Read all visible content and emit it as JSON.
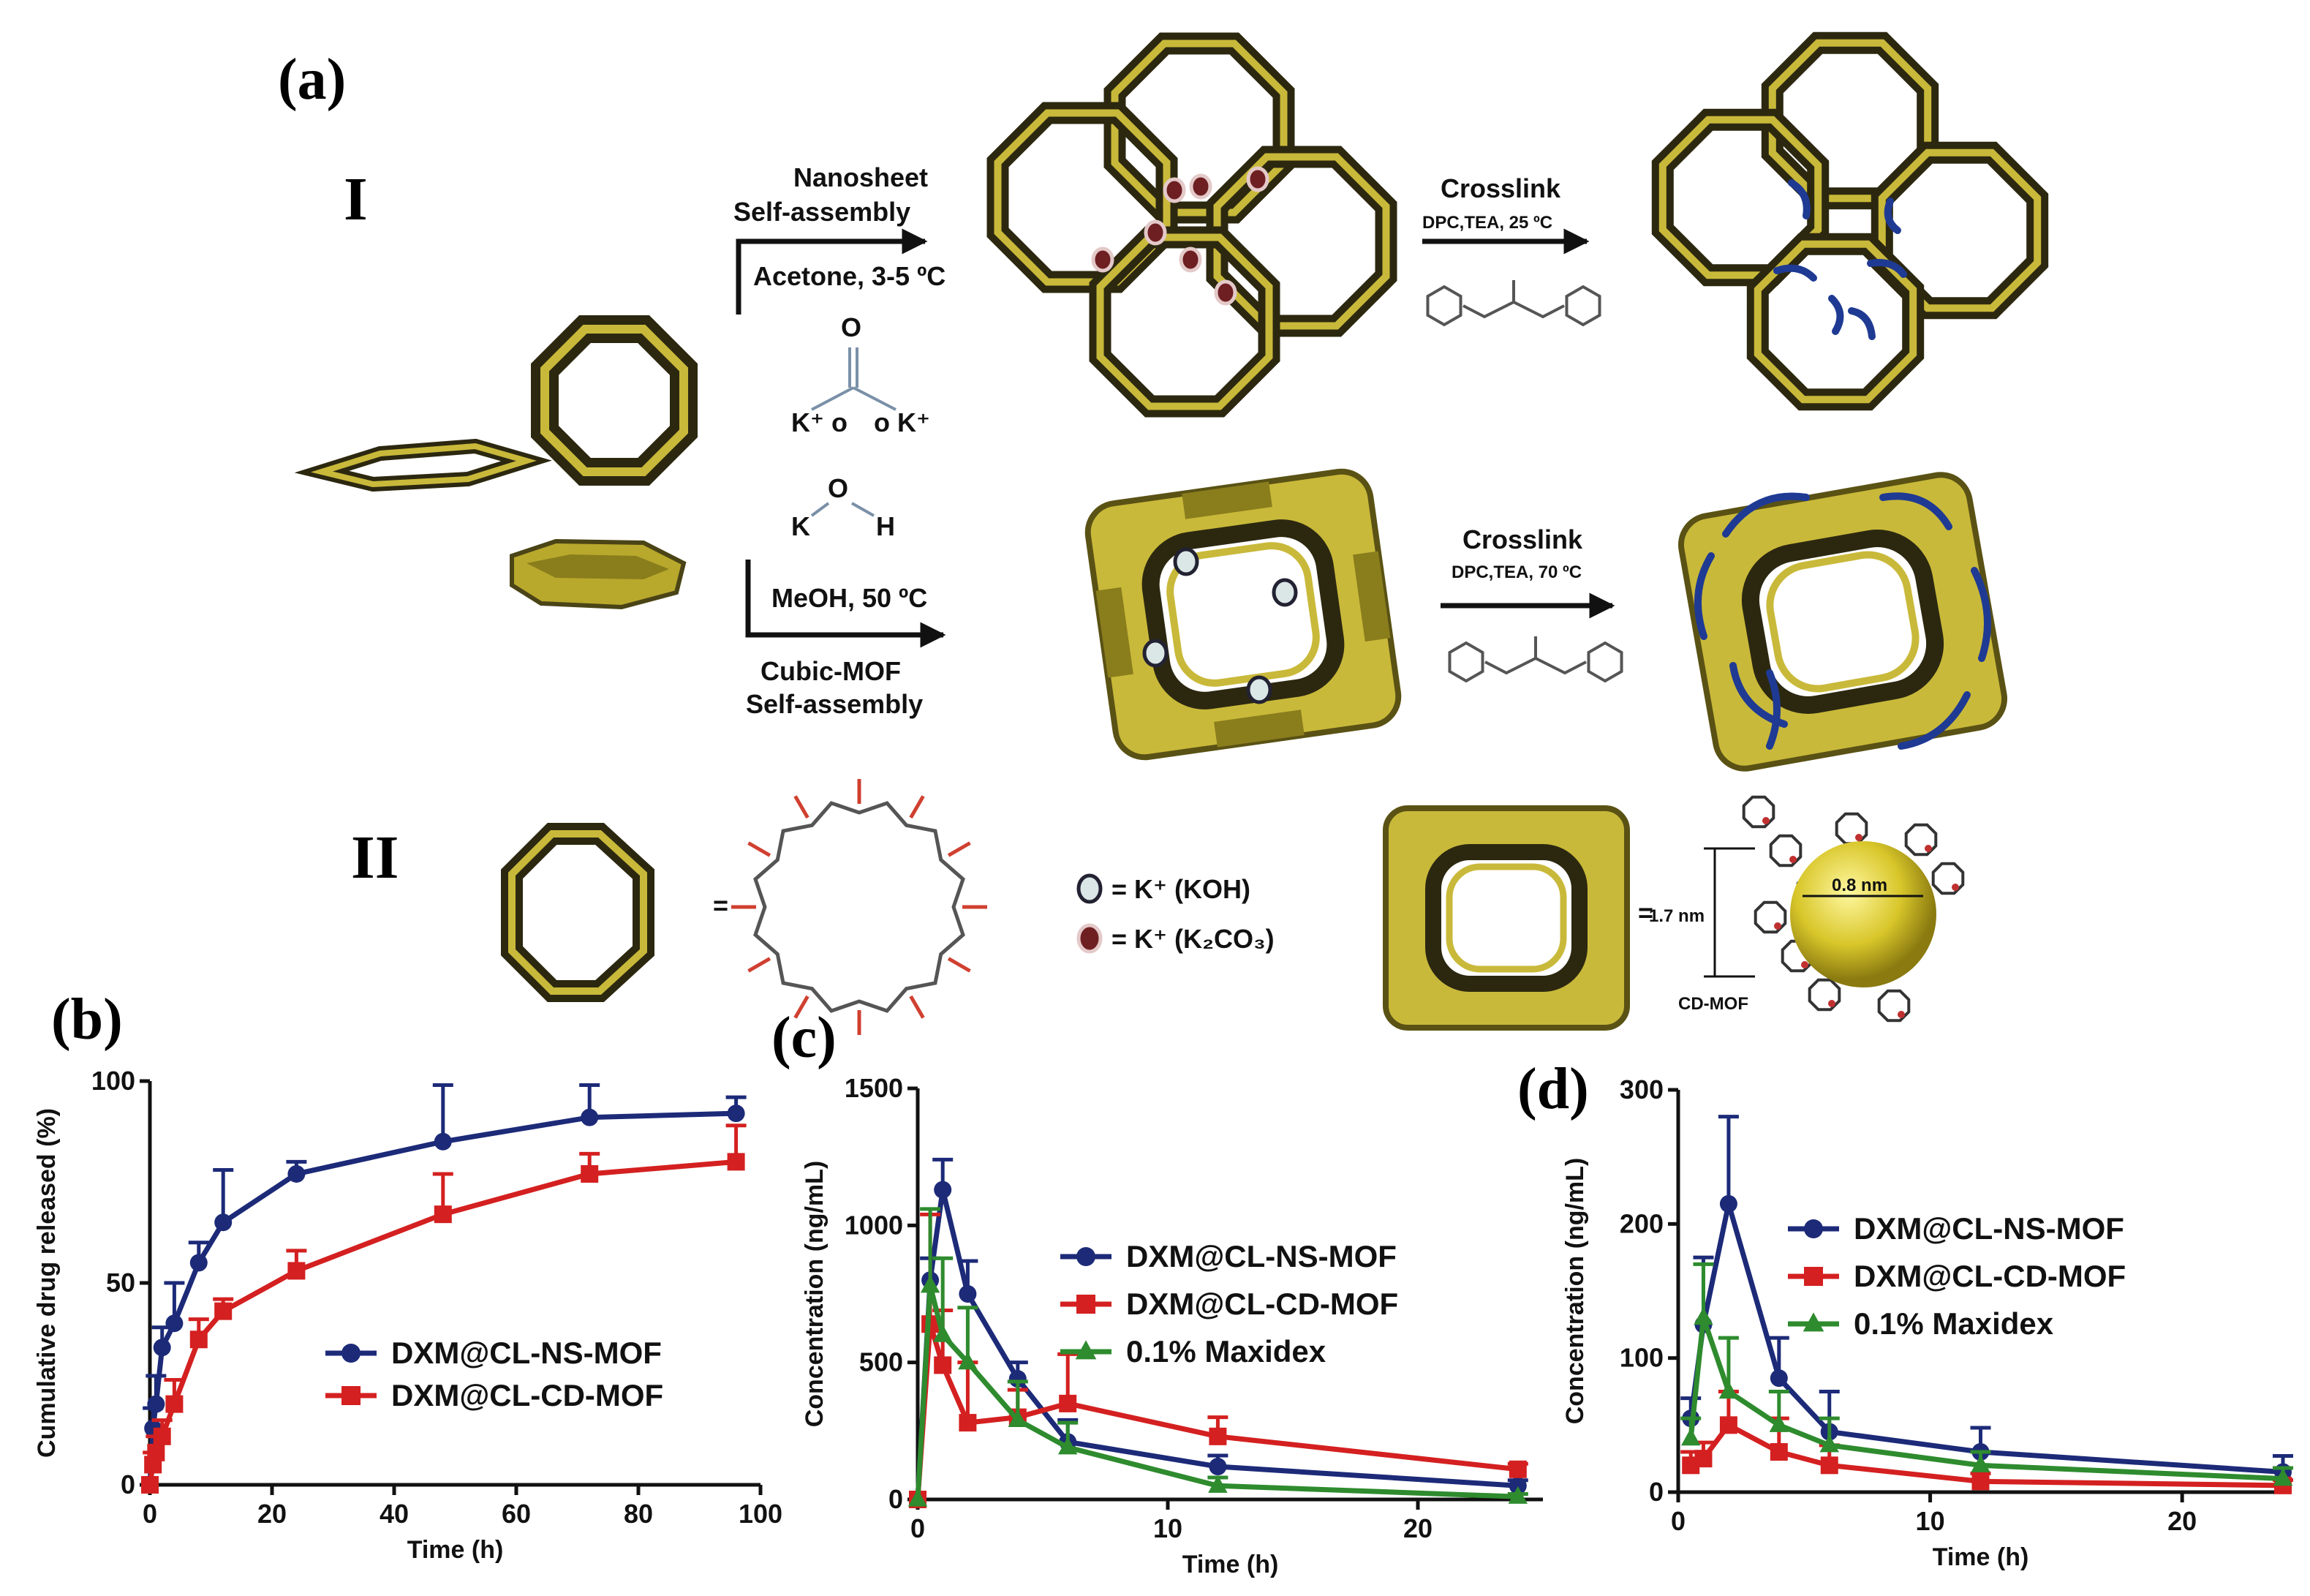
{
  "panels": {
    "a": "(a)",
    "b": "(b)",
    "c": "(c)",
    "d": "(d)",
    "row1": "I",
    "row2": "II"
  },
  "scheme": {
    "route1": {
      "line1": "Nanosheet",
      "line2": "Self-assembly",
      "conditions": "Acetone, 3-5 ºC",
      "reagent": {
        "o_top": "O",
        "k_left": "K⁺ o",
        "k_right": "o  K⁺"
      }
    },
    "route2": {
      "conditions": "MeOH, 50 ºC",
      "line1": "Cubic-MOF",
      "line2": "Self-assembly",
      "reagent": {
        "k": "K",
        "o": "O",
        "h": "H"
      }
    },
    "crosslink1": {
      "title": "Crosslink",
      "conditions": "DPC,TEA, 25 ºC"
    },
    "crosslink2": {
      "title": "Crosslink",
      "conditions": "DPC,TEA, 70 ºC"
    },
    "legend": {
      "equals": "=",
      "koh": "= K⁺ (KOH)",
      "k2co3": "= K⁺ (K₂CO₃)",
      "dim_outer": "1.7 nm",
      "dim_inner": "0.8 nm",
      "cdmof": "CD-MOF"
    },
    "colors": {
      "ring_gold": "#c9b93a",
      "ring_dark": "#2c2810",
      "crosslink": "#1f3a93",
      "koh_ion": "#dbe7e7",
      "k2co3_ion": "#6e1f22"
    }
  },
  "chart_data": [
    {
      "id": "b",
      "type": "line",
      "xlabel": "Time (h)",
      "ylabel": "Cumulative drug released (%)",
      "xlim": [
        0,
        100
      ],
      "ylim": [
        0,
        100
      ],
      "xticks": [
        0,
        20,
        40,
        60,
        80,
        100
      ],
      "yticks": [
        0,
        50,
        100
      ],
      "legend_position": "center-right",
      "series": [
        {
          "name": "DXM@CL-NS-MOF",
          "color": "#1c2a78",
          "marker": "circle",
          "x": [
            0,
            0.5,
            1,
            2,
            4,
            8,
            12,
            24,
            48,
            72,
            96
          ],
          "y": [
            0,
            14,
            20,
            34,
            40,
            55,
            65,
            77,
            85,
            91,
            92
          ],
          "err": [
            0,
            5,
            7,
            5,
            10,
            5,
            13,
            3,
            14,
            8,
            4
          ]
        },
        {
          "name": "DXM@CL-CD-MOF",
          "color": "#d42020",
          "marker": "square",
          "x": [
            0,
            0.5,
            1,
            2,
            4,
            8,
            12,
            24,
            48,
            72,
            96
          ],
          "y": [
            0,
            5,
            8,
            12,
            20,
            36,
            43,
            53,
            67,
            77,
            80
          ],
          "err": [
            0,
            3,
            4,
            4,
            6,
            5,
            3,
            5,
            10,
            5,
            9
          ]
        }
      ]
    },
    {
      "id": "c",
      "type": "line",
      "xlabel": "Time (h)",
      "ylabel": "Concentration (ng/mL)",
      "xlim": [
        0,
        25
      ],
      "ylim": [
        0,
        1500
      ],
      "xticks": [
        0,
        10,
        20
      ],
      "yticks": [
        0,
        500,
        1000,
        1500
      ],
      "legend_position": "center-right",
      "series": [
        {
          "name": "DXM@CL-NS-MOF",
          "color": "#1c2a78",
          "marker": "circle",
          "x": [
            0,
            0.5,
            1,
            2,
            4,
            6,
            12,
            24
          ],
          "y": [
            0,
            800,
            1130,
            750,
            440,
            210,
            120,
            50
          ],
          "err": [
            0,
            80,
            110,
            120,
            60,
            80,
            40,
            20
          ]
        },
        {
          "name": "DXM@CL-CD-MOF",
          "color": "#d42020",
          "marker": "square",
          "x": [
            0,
            0.5,
            1,
            2,
            4,
            6,
            12,
            24
          ],
          "y": [
            0,
            640,
            490,
            280,
            300,
            350,
            230,
            110
          ],
          "err": [
            0,
            400,
            200,
            220,
            100,
            180,
            70,
            20
          ]
        },
        {
          "name": "0.1% Maxidex",
          "color": "#2e8b2e",
          "marker": "triangle",
          "x": [
            0,
            0.5,
            1,
            2,
            4,
            6,
            12,
            24
          ],
          "y": [
            0,
            780,
            600,
            500,
            290,
            190,
            50,
            10
          ],
          "err": [
            0,
            280,
            280,
            200,
            140,
            90,
            30,
            10
          ]
        }
      ]
    },
    {
      "id": "d",
      "type": "line",
      "xlabel": "Time (h)",
      "ylabel": "Concentration (ng/mL)",
      "xlim": [
        0,
        24
      ],
      "ylim": [
        0,
        300
      ],
      "xticks": [
        0,
        10,
        20
      ],
      "yticks": [
        0,
        100,
        200,
        300
      ],
      "legend_position": "top-right",
      "series": [
        {
          "name": "DXM@CL-NS-MOF",
          "color": "#1c2a78",
          "marker": "circle",
          "x": [
            0.5,
            1,
            2,
            4,
            6,
            12,
            24
          ],
          "y": [
            55,
            125,
            215,
            85,
            45,
            30,
            15
          ],
          "err": [
            15,
            50,
            65,
            30,
            30,
            18,
            12
          ]
        },
        {
          "name": "DXM@CL-CD-MOF",
          "color": "#d42020",
          "marker": "square",
          "x": [
            0.5,
            1,
            2,
            4,
            6,
            12,
            24
          ],
          "y": [
            20,
            25,
            50,
            30,
            20,
            8,
            5
          ],
          "err": [
            10,
            12,
            25,
            25,
            15,
            6,
            4
          ]
        },
        {
          "name": "0.1% Maxidex",
          "color": "#2e8b2e",
          "marker": "triangle",
          "x": [
            0.5,
            1,
            2,
            4,
            6,
            12,
            24
          ],
          "y": [
            40,
            130,
            75,
            50,
            35,
            20,
            10
          ],
          "err": [
            15,
            40,
            40,
            25,
            20,
            10,
            8
          ]
        }
      ]
    }
  ]
}
